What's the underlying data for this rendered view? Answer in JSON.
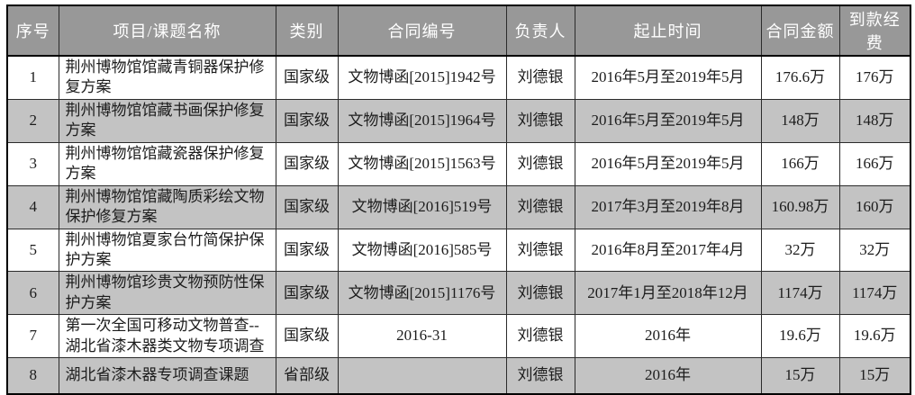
{
  "colors": {
    "header_bg": "#989898",
    "header_text": "#ffffff",
    "row_even_bg": "#c3c3c3",
    "row_odd_bg": "#ffffff",
    "outer_border": "#000000",
    "grid_line": "#2b2b2b",
    "body_text": "#1c1c1c"
  },
  "table": {
    "columns": [
      {
        "key": "index",
        "label": "序号"
      },
      {
        "key": "name",
        "label": "项目/课题名称"
      },
      {
        "key": "category",
        "label": "类别"
      },
      {
        "key": "contract_no",
        "label": "合同编号"
      },
      {
        "key": "leader",
        "label": "负责人"
      },
      {
        "key": "period",
        "label": "起止时间"
      },
      {
        "key": "contract_amount",
        "label": "合同金额"
      },
      {
        "key": "received_funds",
        "label": "到款经费"
      }
    ],
    "rows": [
      [
        "1",
        "荆州博物馆馆藏青铜器保护修复方案",
        "国家级",
        "文物博函[2015]1942号",
        "刘德银",
        "2016年5月至2019年5月",
        "176.6万",
        "176万"
      ],
      [
        "2",
        "荆州博物馆馆藏书画保护修复方案",
        "国家级",
        "文物博函[2015]1964号",
        "刘德银",
        "2016年5月至2019年5月",
        "148万",
        "148万"
      ],
      [
        "3",
        "荆州博物馆馆藏瓷器保护修复方案",
        "国家级",
        "文物博函[2015]1563号",
        "刘德银",
        "2016年5月至2019年5月",
        "166万",
        "166万"
      ],
      [
        "4",
        "荆州博物馆馆藏陶质彩绘文物保护修复方案",
        "国家级",
        "文物博函[2016]519号",
        "刘德银",
        "2017年3月至2019年8月",
        "160.98万",
        "160万"
      ],
      [
        "5",
        "荆州博物馆夏家台竹简保护保护方案",
        "国家级",
        "文物博函[2016]585号",
        "刘德银",
        "2016年8月至2017年4月",
        "32万",
        "32万"
      ],
      [
        "6",
        "荆州博物馆珍贵文物预防性保护方案",
        "国家级",
        "文物博函[2015]1176号",
        "刘德银",
        "2017年1月至2018年12月",
        "1174万",
        "1174万"
      ],
      [
        "7",
        "第一次全国可移动文物普查--湖北省漆木器类文物专项调查",
        "国家级",
        "2016-31",
        "刘德银",
        "2016年",
        "19.6万",
        "19.6万"
      ],
      [
        "8",
        "湖北省漆木器专项调查课题",
        "省部级",
        "",
        "刘德银",
        "2016年",
        "15万",
        "15万"
      ]
    ]
  }
}
